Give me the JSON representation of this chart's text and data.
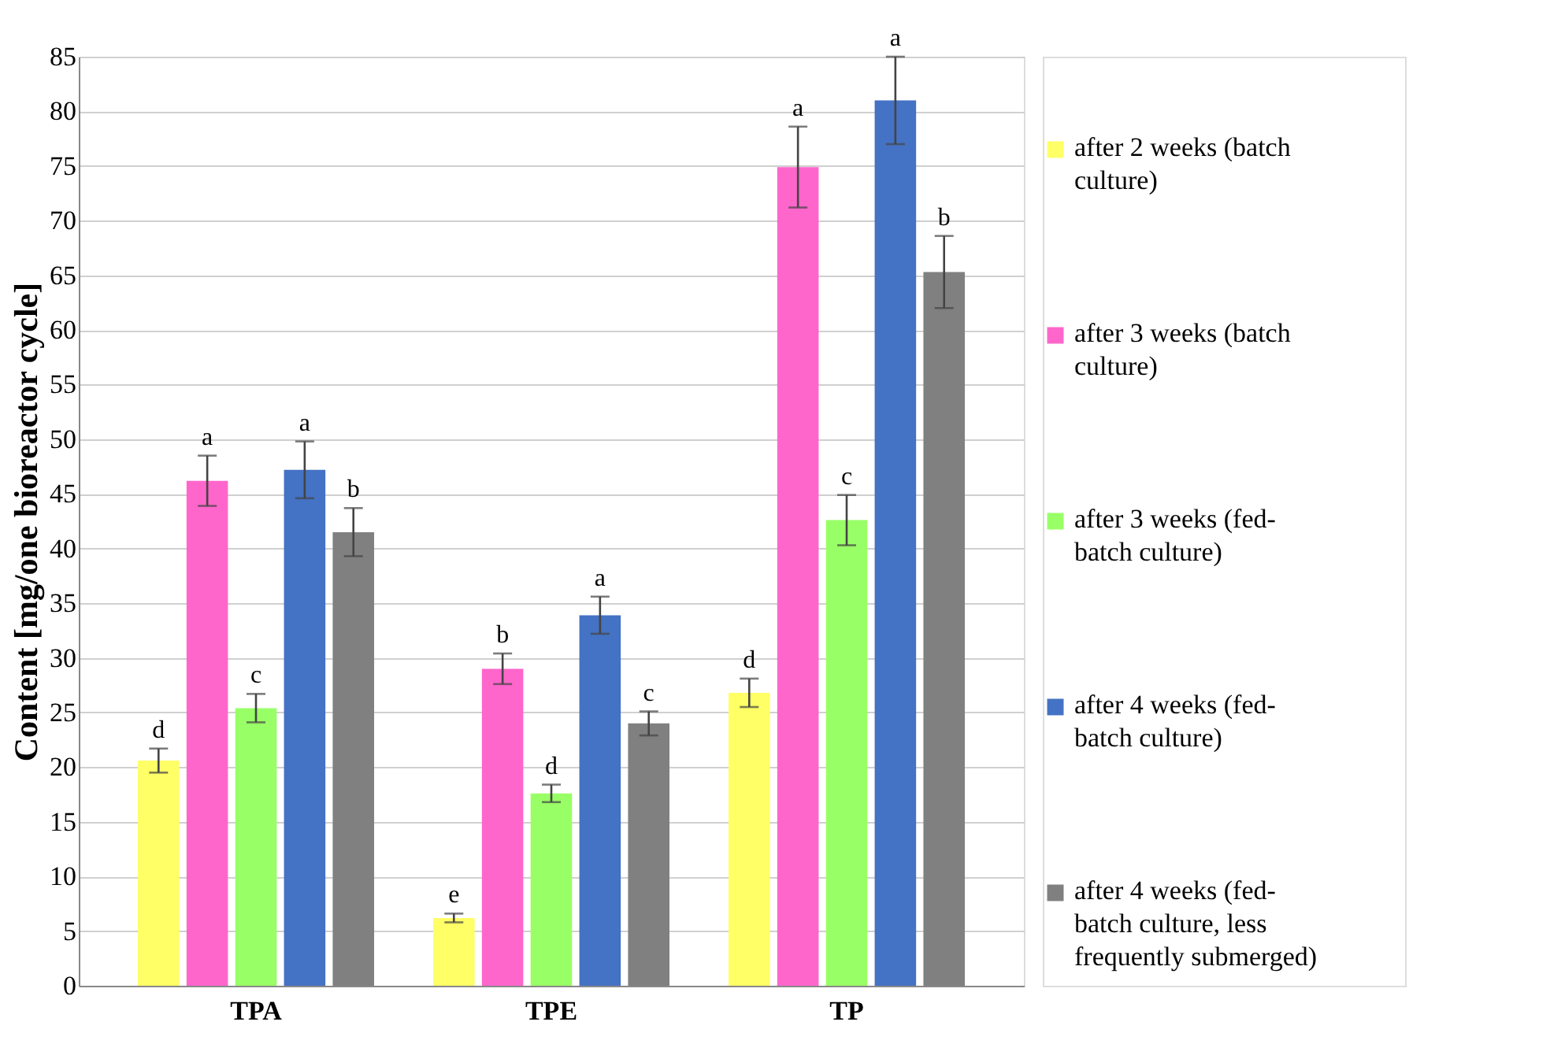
{
  "chart_data": {
    "type": "bar",
    "ylabel": "Content [mg/one bioreactor cycle]",
    "categories": [
      "TPA",
      "TPE",
      "TP"
    ],
    "series": [
      {
        "name": "after 2 weeks (batch culture)",
        "color": "#ffff66",
        "values": [
          20.6,
          6.2,
          26.8
        ],
        "errors": [
          1.1,
          0.4,
          1.3
        ],
        "value_labels": [
          "d",
          "e",
          "d"
        ]
      },
      {
        "name": "after 3 weeks (batch culture)",
        "color": "#ff66cc",
        "values": [
          46.2,
          29.0,
          74.9
        ],
        "errors": [
          2.3,
          1.4,
          3.7
        ],
        "value_labels": [
          "a",
          "b",
          "a"
        ]
      },
      {
        "name": "after 3 weeks (fed-batch culture)",
        "color": "#99ff66",
        "values": [
          25.4,
          17.6,
          42.6
        ],
        "errors": [
          1.3,
          0.8,
          2.3
        ],
        "value_labels": [
          "c",
          "d",
          "c"
        ]
      },
      {
        "name": "after 4 weeks (fed-batch culture)",
        "color": "#4472c4",
        "values": [
          47.2,
          33.9,
          81.0
        ],
        "errors": [
          2.6,
          1.7,
          4.0
        ],
        "value_labels": [
          "a",
          "a",
          "a"
        ]
      },
      {
        "name": "after 4 weeks (fed-batch culture, less frequently submerged)",
        "color": "#808080",
        "values": [
          41.5,
          24.0,
          65.3
        ],
        "errors": [
          2.2,
          1.1,
          3.3
        ],
        "value_labels": [
          "b",
          "c",
          "b"
        ]
      }
    ],
    "ylim": [
      0,
      85
    ],
    "yticks": [
      0,
      5,
      10,
      15,
      20,
      25,
      30,
      35,
      40,
      45,
      50,
      55,
      60,
      65,
      70,
      75,
      80,
      85
    ],
    "grid": "y",
    "legend": "right"
  }
}
